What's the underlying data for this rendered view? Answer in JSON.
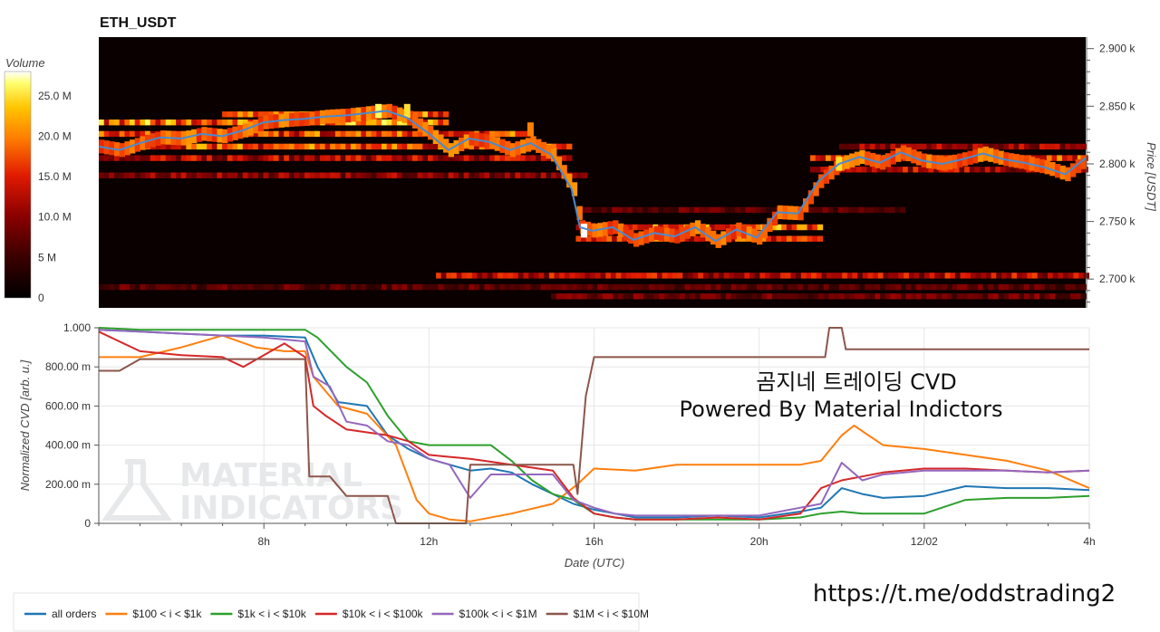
{
  "colors": {
    "all_orders": "#1f77b4",
    "c100_1k": "#ff7f0e",
    "c1k_10k": "#2ca02c",
    "c10k_100k": "#d62728",
    "c100k_1M": "#9467bd",
    "c1M_10M": "#8c564b",
    "price_line": "#4a8ad0",
    "heatmap_scale": [
      "#000000",
      "#3a0000",
      "#8a0000",
      "#e01a00",
      "#ff6a00",
      "#ffc000",
      "#ffff60",
      "#ffffff"
    ]
  },
  "chart_data": [
    {
      "type": "heatmap",
      "title": "ETH_USDT",
      "ylabel": "Price [USDT]",
      "ylim": [
        2675,
        2910
      ],
      "y_ticks": [
        "2.700 k",
        "2.750 k",
        "2.800 k",
        "2.850 k",
        "2.900 k"
      ],
      "y_tick_values": [
        2700,
        2750,
        2800,
        2850,
        2900
      ],
      "x_range_hours": [
        4,
        28
      ],
      "colorbar": {
        "title": "Volume",
        "ticks": [
          "0",
          "5 M",
          "10.0 M",
          "15.0 M",
          "20.0 M",
          "25.0 M"
        ],
        "tick_values": [
          0,
          5,
          10,
          15,
          20,
          25
        ],
        "range": [
          0,
          28
        ]
      },
      "price_series": {
        "x_hours": [
          4,
          4.5,
          5,
          5.5,
          6,
          6.5,
          7,
          7.5,
          8,
          8.5,
          9,
          9.5,
          10,
          10.5,
          11,
          11.5,
          12,
          12.5,
          13,
          13.5,
          14,
          14.5,
          15,
          15.5,
          15.7,
          16,
          16.5,
          17,
          17.5,
          18,
          18.5,
          19,
          19.5,
          20,
          20.5,
          21,
          21.5,
          22,
          22.5,
          23,
          23.5,
          24,
          24.5,
          25,
          25.5,
          26,
          26.5,
          27,
          27.5,
          28
        ],
        "y": [
          2815,
          2812,
          2818,
          2823,
          2822,
          2826,
          2824,
          2829,
          2836,
          2838,
          2839,
          2841,
          2842,
          2844,
          2846,
          2840,
          2827,
          2812,
          2822,
          2819,
          2812,
          2818,
          2808,
          2778,
          2745,
          2742,
          2745,
          2734,
          2740,
          2737,
          2745,
          2733,
          2743,
          2736,
          2758,
          2757,
          2785,
          2800,
          2806,
          2801,
          2810,
          2803,
          2800,
          2804,
          2809,
          2804,
          2801,
          2797,
          2791,
          2805
        ]
      },
      "heat_bands": [
        {
          "price": 2843,
          "intensity": 0.55,
          "x_start": 7,
          "x_end": 12.5
        },
        {
          "price": 2836,
          "intensity": 0.6,
          "x_start": 4,
          "x_end": 12.5
        },
        {
          "price": 2826,
          "intensity": 0.5,
          "x_start": 4,
          "x_end": 14.5
        },
        {
          "price": 2815,
          "intensity": 0.5,
          "x_start": 4,
          "x_end": 15.5
        },
        {
          "price": 2805,
          "intensity": 0.35,
          "x_start": 4,
          "x_end": 15.5
        },
        {
          "price": 2790,
          "intensity": 0.28,
          "x_start": 4,
          "x_end": 15.8
        },
        {
          "price": 2745,
          "intensity": 0.55,
          "x_start": 15.6,
          "x_end": 21.5
        },
        {
          "price": 2735,
          "intensity": 0.45,
          "x_start": 15.6,
          "x_end": 21.5
        },
        {
          "price": 2760,
          "intensity": 0.2,
          "x_start": 15.6,
          "x_end": 23.5
        },
        {
          "price": 2805,
          "intensity": 0.5,
          "x_start": 21.3,
          "x_end": 28
        },
        {
          "price": 2795,
          "intensity": 0.35,
          "x_start": 21.3,
          "x_end": 28
        },
        {
          "price": 2815,
          "intensity": 0.3,
          "x_start": 22,
          "x_end": 28
        },
        {
          "price": 2703,
          "intensity": 0.35,
          "x_start": 12.2,
          "x_end": 28
        },
        {
          "price": 2693,
          "intensity": 0.2,
          "x_start": 4,
          "x_end": 28
        },
        {
          "price": 2685,
          "intensity": 0.22,
          "x_start": 15,
          "x_end": 28
        }
      ],
      "hot_spots": [
        {
          "x": 10.8,
          "price": 2846,
          "volume": 24
        },
        {
          "x": 11.5,
          "price": 2846,
          "volume": 22
        },
        {
          "x": 14.5,
          "price": 2830,
          "volume": 17
        },
        {
          "x": 15.8,
          "price": 2742,
          "volume": 28
        },
        {
          "x": 22.0,
          "price": 2800,
          "volume": 22
        }
      ]
    },
    {
      "type": "line",
      "xlabel": "Date (UTC)",
      "ylabel": "Normalized CVD [arb. u.]",
      "ylim": [
        0,
        1
      ],
      "xlim": [
        4,
        28
      ],
      "x_ticks": [
        "8h",
        "12h",
        "16h",
        "20h",
        "12/02",
        "4h"
      ],
      "x_tick_values": [
        8,
        12,
        16,
        20,
        24,
        28
      ],
      "y_ticks": [
        "0",
        "200.00 m",
        "400.00 m",
        "600.00 m",
        "800.00 m",
        "1.000"
      ],
      "y_tick_values": [
        0,
        0.2,
        0.4,
        0.6,
        0.8,
        1.0
      ],
      "annotation_line1": "곰지네 트레이딩 CVD",
      "annotation_line2": "Powered By Material Indictors",
      "watermark_line1": "MATERIAL",
      "watermark_line2": "INDICATORS",
      "series": [
        {
          "name": "all orders",
          "color_key": "all_orders",
          "x": [
            4,
            5,
            6,
            7,
            8,
            9,
            9.3,
            9.8,
            10.5,
            11,
            11.5,
            12,
            12.5,
            13,
            13.5,
            14,
            14.5,
            15,
            15.5,
            16,
            16.5,
            17,
            18,
            19,
            20,
            21,
            21.5,
            22,
            22.5,
            23,
            24,
            25,
            26,
            27,
            28
          ],
          "y": [
            0.99,
            0.98,
            0.97,
            0.96,
            0.96,
            0.95,
            0.8,
            0.62,
            0.6,
            0.45,
            0.38,
            0.33,
            0.3,
            0.27,
            0.28,
            0.26,
            0.2,
            0.15,
            0.1,
            0.07,
            0.05,
            0.03,
            0.03,
            0.04,
            0.03,
            0.06,
            0.08,
            0.18,
            0.15,
            0.13,
            0.14,
            0.19,
            0.18,
            0.18,
            0.17
          ]
        },
        {
          "name": "$100 < i < $1k",
          "color_key": "c100_1k",
          "x": [
            4,
            5,
            6,
            7,
            7.8,
            8.5,
            9,
            9.2,
            9.8,
            10.5,
            11.2,
            11.7,
            12,
            12.5,
            13,
            14,
            15,
            15.6,
            16,
            17,
            18,
            19,
            20,
            21,
            21.5,
            22,
            22.3,
            23,
            24,
            25,
            26,
            27,
            28
          ],
          "y": [
            0.85,
            0.85,
            0.9,
            0.96,
            0.9,
            0.88,
            0.88,
            0.75,
            0.6,
            0.56,
            0.4,
            0.12,
            0.05,
            0.02,
            0.01,
            0.05,
            0.1,
            0.2,
            0.28,
            0.27,
            0.3,
            0.3,
            0.3,
            0.3,
            0.32,
            0.45,
            0.5,
            0.4,
            0.38,
            0.35,
            0.32,
            0.27,
            0.18
          ]
        },
        {
          "name": "$1k < i < $10k",
          "color_key": "c1k_10k",
          "x": [
            4,
            5,
            6,
            7,
            8,
            9,
            9.3,
            10,
            10.5,
            11,
            11.5,
            12,
            12.5,
            13,
            13.5,
            14,
            14.5,
            15,
            15.5,
            16,
            16.5,
            17,
            18,
            19,
            20,
            21,
            21.5,
            22,
            22.5,
            23,
            24,
            25,
            26,
            27,
            28
          ],
          "y": [
            1.0,
            0.99,
            0.99,
            0.99,
            0.99,
            0.99,
            0.95,
            0.8,
            0.72,
            0.55,
            0.42,
            0.4,
            0.4,
            0.4,
            0.4,
            0.32,
            0.22,
            0.15,
            0.12,
            0.05,
            0.03,
            0.02,
            0.02,
            0.02,
            0.02,
            0.03,
            0.05,
            0.06,
            0.05,
            0.05,
            0.05,
            0.12,
            0.13,
            0.13,
            0.14
          ]
        },
        {
          "name": "$10k < i < $100k",
          "color_key": "c10k_100k",
          "x": [
            4,
            5,
            6,
            7,
            7.5,
            8,
            8.5,
            9,
            9.2,
            9.5,
            10,
            11,
            11.5,
            12,
            12.5,
            13,
            14,
            15,
            15.5,
            16,
            16.5,
            17,
            18,
            19,
            20,
            21,
            21.5,
            22,
            22.5,
            23,
            24,
            25,
            26,
            27,
            28
          ],
          "y": [
            0.98,
            0.88,
            0.86,
            0.85,
            0.8,
            0.86,
            0.92,
            0.85,
            0.6,
            0.55,
            0.48,
            0.45,
            0.42,
            0.35,
            0.34,
            0.33,
            0.3,
            0.27,
            0.13,
            0.05,
            0.03,
            0.02,
            0.02,
            0.03,
            0.02,
            0.05,
            0.18,
            0.22,
            0.24,
            0.26,
            0.28,
            0.28,
            0.27,
            0.26,
            0.27
          ]
        },
        {
          "name": "$100k < i < $1M",
          "color_key": "c100k_1M",
          "x": [
            4,
            5,
            6,
            7,
            8,
            9,
            9.2,
            9.6,
            10,
            10.5,
            11,
            11.5,
            12,
            12.5,
            13,
            13.5,
            14,
            15,
            15.5,
            16,
            16.5,
            17,
            18,
            19,
            20,
            21,
            21.5,
            22,
            22.5,
            23,
            24,
            25,
            26,
            27,
            28
          ],
          "y": [
            0.99,
            0.98,
            0.97,
            0.96,
            0.95,
            0.93,
            0.75,
            0.7,
            0.52,
            0.5,
            0.42,
            0.4,
            0.33,
            0.3,
            0.13,
            0.25,
            0.25,
            0.25,
            0.12,
            0.08,
            0.05,
            0.04,
            0.04,
            0.04,
            0.04,
            0.08,
            0.1,
            0.31,
            0.22,
            0.25,
            0.27,
            0.27,
            0.27,
            0.26,
            0.27
          ]
        },
        {
          "name": "$1M < i < $10M",
          "color_key": "c1M_10M",
          "x": [
            4,
            4.5,
            5,
            6,
            7,
            8,
            9,
            9.1,
            9.6,
            10,
            10.5,
            11,
            11.2,
            12,
            12.9,
            13,
            15.5,
            15.6,
            15.8,
            16,
            17,
            18,
            19,
            20,
            21,
            21.6,
            21.7,
            21.8,
            22,
            22.1,
            23,
            24,
            25,
            26,
            27,
            28
          ],
          "y": [
            0.78,
            0.78,
            0.84,
            0.84,
            0.84,
            0.84,
            0.84,
            0.24,
            0.24,
            0.14,
            0.14,
            0.14,
            0.0,
            0.0,
            0.0,
            0.3,
            0.3,
            0.15,
            0.65,
            0.85,
            0.85,
            0.85,
            0.85,
            0.85,
            0.85,
            0.85,
            1.0,
            1.0,
            1.0,
            0.89,
            0.89,
            0.89,
            0.89,
            0.89,
            0.89,
            0.89
          ]
        }
      ]
    }
  ],
  "footer": {
    "link_text": "https://t.me/oddstrading2"
  }
}
